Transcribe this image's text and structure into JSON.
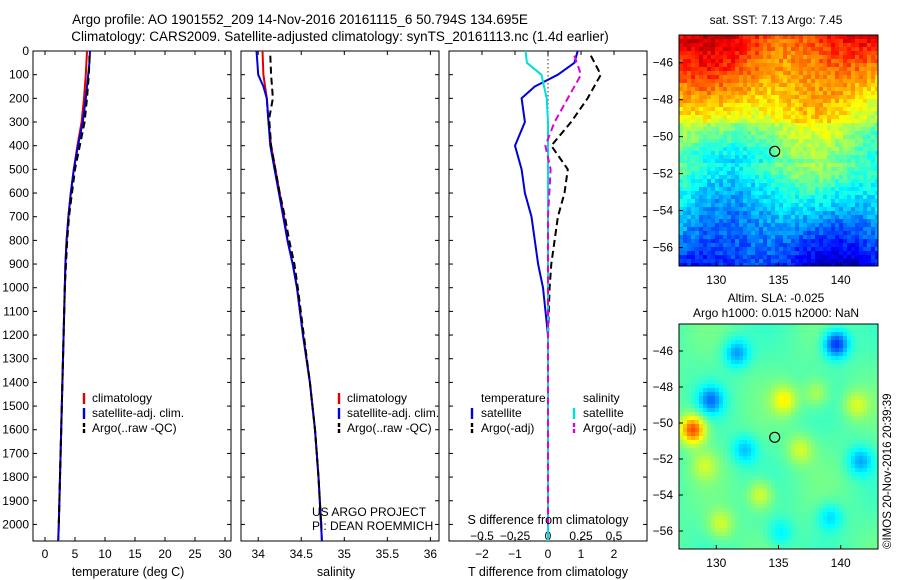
{
  "header": {
    "title_line1": "Argo profile: AO 1901552_209 14-Nov-2016 20161115_6 50.794S 134.695E",
    "title_line2": "Climatology: CARS2009. Satellite-adjusted climatology: synTS_20161113.nc (1.4d earlier)"
  },
  "credits": {
    "project": "US ARGO PROJECT",
    "pi": "PI: DEAN ROEMMICH",
    "copyright": "©IMOS 20-Nov-2016 20:39:39"
  },
  "colors": {
    "climatology": "#dd0000",
    "satellite": "#0000dd",
    "argo": "#000000",
    "satellite_salinity": "#00dddd",
    "argo_salinity": "#dd00dd"
  },
  "chart_data": [
    {
      "id": "temperature",
      "type": "line",
      "xlabel": "temperature (deg C)",
      "ylabel": "",
      "xlim": [
        -2,
        31
      ],
      "ylim": [
        2070,
        0
      ],
      "y_reversed": true,
      "xticks": [
        0,
        5,
        10,
        15,
        20,
        25,
        30
      ],
      "yticks": [
        0,
        100,
        200,
        300,
        400,
        500,
        600,
        700,
        800,
        900,
        1000,
        1100,
        1200,
        1300,
        1400,
        1500,
        1600,
        1700,
        1800,
        1900,
        2000
      ],
      "legend": [
        "climatology",
        "satellite-adj. clim.",
        "Argo(..raw -QC)"
      ],
      "legend_position": "lower-right",
      "series": [
        {
          "name": "climatology",
          "style": "solid",
          "color": "#dd0000",
          "points": [
            [
              7.0,
              0
            ],
            [
              6.9,
              50
            ],
            [
              6.8,
              100
            ],
            [
              6.5,
              200
            ],
            [
              6.1,
              300
            ],
            [
              5.4,
              400
            ],
            [
              4.8,
              500
            ],
            [
              4.3,
              600
            ],
            [
              3.9,
              700
            ],
            [
              3.6,
              800
            ],
            [
              3.4,
              900
            ],
            [
              3.3,
              1000
            ],
            [
              3.1,
              1200
            ],
            [
              2.9,
              1400
            ],
            [
              2.7,
              1600
            ],
            [
              2.5,
              1800
            ],
            [
              2.3,
              2000
            ],
            [
              2.2,
              2070
            ]
          ]
        },
        {
          "name": "satellite-adj. clim.",
          "style": "solid",
          "color": "#0000dd",
          "points": [
            [
              7.5,
              0
            ],
            [
              7.4,
              50
            ],
            [
              7.2,
              100
            ],
            [
              6.8,
              200
            ],
            [
              6.3,
              300
            ],
            [
              5.5,
              400
            ],
            [
              4.8,
              500
            ],
            [
              4.3,
              600
            ],
            [
              3.9,
              700
            ],
            [
              3.6,
              800
            ],
            [
              3.4,
              900
            ],
            [
              3.3,
              1000
            ],
            [
              3.1,
              1200
            ],
            [
              2.9,
              1400
            ],
            [
              2.7,
              1600
            ],
            [
              2.5,
              1800
            ],
            [
              2.3,
              2000
            ],
            [
              2.2,
              2070
            ]
          ]
        },
        {
          "name": "Argo(..raw -QC)",
          "style": "dashed",
          "color": "#000000",
          "points": [
            [
              7.4,
              20
            ],
            [
              7.4,
              50
            ],
            [
              7.3,
              100
            ],
            [
              7.0,
              200
            ],
            [
              6.6,
              300
            ],
            [
              5.8,
              400
            ],
            [
              5.0,
              500
            ],
            [
              4.5,
              600
            ],
            [
              4.0,
              700
            ],
            [
              3.7,
              800
            ],
            [
              3.5,
              900
            ],
            [
              3.3,
              1000
            ],
            [
              3.1,
              1200
            ],
            [
              2.9,
              1400
            ],
            [
              2.7,
              1600
            ],
            [
              2.5,
              1800
            ],
            [
              2.3,
              2000
            ]
          ]
        }
      ]
    },
    {
      "id": "salinity",
      "type": "line",
      "xlabel": "salinity",
      "ylabel": "",
      "xlim": [
        33.8,
        36.1
      ],
      "ylim": [
        2070,
        0
      ],
      "y_reversed": true,
      "xticks": [
        34,
        34.5,
        35,
        35.5,
        36
      ],
      "legend": [
        "climatology",
        "satellite-adj. clim.",
        "Argo(..raw -QC)"
      ],
      "legend_position": "lower-right",
      "series": [
        {
          "name": "climatology",
          "style": "solid",
          "color": "#dd0000",
          "points": [
            [
              34.05,
              0
            ],
            [
              34.06,
              100
            ],
            [
              34.1,
              200
            ],
            [
              34.12,
              300
            ],
            [
              34.15,
              400
            ],
            [
              34.2,
              500
            ],
            [
              34.25,
              600
            ],
            [
              34.3,
              700
            ],
            [
              34.34,
              800
            ],
            [
              34.4,
              900
            ],
            [
              34.45,
              1000
            ],
            [
              34.52,
              1200
            ],
            [
              34.6,
              1400
            ],
            [
              34.66,
              1600
            ],
            [
              34.7,
              1800
            ],
            [
              34.73,
              2000
            ],
            [
              34.74,
              2070
            ]
          ]
        },
        {
          "name": "satellite-adj. clim.",
          "style": "solid",
          "color": "#0000dd",
          "points": [
            [
              33.98,
              0
            ],
            [
              33.99,
              50
            ],
            [
              34.0,
              100
            ],
            [
              34.06,
              150
            ],
            [
              34.1,
              200
            ],
            [
              34.12,
              300
            ],
            [
              34.14,
              400
            ],
            [
              34.19,
              500
            ],
            [
              34.24,
              600
            ],
            [
              34.29,
              700
            ],
            [
              34.34,
              800
            ],
            [
              34.4,
              900
            ],
            [
              34.45,
              1000
            ],
            [
              34.52,
              1200
            ],
            [
              34.6,
              1400
            ],
            [
              34.66,
              1600
            ],
            [
              34.7,
              1800
            ],
            [
              34.73,
              2000
            ],
            [
              34.74,
              2070
            ]
          ]
        },
        {
          "name": "Argo(..raw -QC)",
          "style": "dashed",
          "color": "#000000",
          "points": [
            [
              34.14,
              20
            ],
            [
              34.15,
              100
            ],
            [
              34.17,
              200
            ],
            [
              34.13,
              280
            ],
            [
              34.13,
              300
            ],
            [
              34.15,
              400
            ],
            [
              34.2,
              500
            ],
            [
              34.25,
              600
            ],
            [
              34.31,
              700
            ],
            [
              34.36,
              800
            ],
            [
              34.42,
              900
            ],
            [
              34.46,
              1000
            ],
            [
              34.53,
              1200
            ],
            [
              34.6,
              1400
            ],
            [
              34.66,
              1600
            ],
            [
              34.7,
              1800
            ],
            [
              34.73,
              2000
            ]
          ]
        }
      ]
    },
    {
      "id": "differences",
      "type": "line",
      "xlabel": "T difference from climatology",
      "x2label": "S difference from climatology",
      "ylabel": "",
      "xlim": [
        -3,
        3
      ],
      "x2lim": [
        -0.75,
        0.75
      ],
      "ylim": [
        2070,
        0
      ],
      "y_reversed": true,
      "xticks": [
        -2,
        -1,
        0,
        1,
        2
      ],
      "x2ticks": [
        -0.5,
        -0.25,
        0,
        0.25,
        0.5
      ],
      "legend_groups": [
        {
          "title": "temperature",
          "entries": [
            "satellite",
            "Argo(-adj)"
          ]
        },
        {
          "title": "salinity",
          "entries": [
            "satellite",
            "Argo(-adj)"
          ]
        }
      ],
      "legend_position": "lower",
      "series": [
        {
          "name": "satellite",
          "group": "temperature",
          "style": "solid",
          "color": "#0000dd",
          "points": [
            [
              0.9,
              0
            ],
            [
              0.8,
              50
            ],
            [
              0.3,
              100
            ],
            [
              -0.4,
              150
            ],
            [
              -0.8,
              200
            ],
            [
              -0.7,
              300
            ],
            [
              -1.0,
              400
            ],
            [
              -0.8,
              500
            ],
            [
              -0.7,
              600
            ],
            [
              -0.5,
              700
            ],
            [
              -0.4,
              800
            ],
            [
              -0.3,
              900
            ],
            [
              -0.15,
              1000
            ],
            [
              0,
              1200
            ],
            [
              0,
              1500
            ],
            [
              0,
              2000
            ],
            [
              0,
              2070
            ]
          ]
        },
        {
          "name": "Argo(-adj)",
          "group": "temperature",
          "style": "dashed",
          "color": "#000000",
          "points": [
            [
              1.3,
              20
            ],
            [
              1.6,
              100
            ],
            [
              1.2,
              200
            ],
            [
              0.7,
              300
            ],
            [
              0.1,
              400
            ],
            [
              0.6,
              500
            ],
            [
              0.5,
              600
            ],
            [
              0.3,
              700
            ],
            [
              0.2,
              800
            ],
            [
              0.1,
              900
            ],
            [
              0.05,
              1000
            ],
            [
              0,
              1200
            ],
            [
              0,
              1500
            ],
            [
              0,
              2000
            ]
          ]
        },
        {
          "name": "satellite",
          "group": "salinity",
          "style": "solid",
          "color": "#00dddd",
          "points": [
            [
              -0.17,
              0
            ],
            [
              -0.16,
              50
            ],
            [
              -0.05,
              100
            ],
            [
              -0.01,
              200
            ],
            [
              0,
              300
            ],
            [
              0,
              500
            ],
            [
              0,
              700
            ],
            [
              0,
              1000
            ],
            [
              0,
              1500
            ],
            [
              0,
              2000
            ],
            [
              0,
              2070
            ]
          ]
        },
        {
          "name": "Argo(-adj)",
          "group": "salinity",
          "style": "dashed",
          "color": "#dd00dd",
          "points": [
            [
              0.2,
              20
            ],
            [
              0.25,
              100
            ],
            [
              0.15,
              200
            ],
            [
              0.05,
              300
            ],
            [
              -0.02,
              400
            ],
            [
              0.02,
              500
            ],
            [
              0.0,
              700
            ],
            [
              0,
              1000
            ],
            [
              0,
              1500
            ],
            [
              0,
              2000
            ]
          ]
        }
      ]
    },
    {
      "id": "sst-map",
      "type": "heatmap",
      "title": "sat. SST: 7.13  Argo: 7.45",
      "xlim": [
        127,
        143
      ],
      "ylim": [
        -57,
        -44.5
      ],
      "xticks": [
        130,
        135,
        140
      ],
      "yticks": [
        -46,
        -48,
        -50,
        -52,
        -54,
        -56
      ],
      "marker": {
        "lon": 134.695,
        "lat": -50.794
      },
      "colormap": "jet"
    },
    {
      "id": "sla-map",
      "type": "heatmap",
      "title_line1": "Altim. SLA: -0.025",
      "title_line2": "Argo h1000: 0.015 h2000: NaN",
      "xlim": [
        127,
        143
      ],
      "ylim": [
        -57,
        -44.5
      ],
      "xticks": [
        130,
        135,
        140
      ],
      "yticks": [
        -46,
        -48,
        -50,
        -52,
        -54,
        -56
      ],
      "marker": {
        "lon": 134.695,
        "lat": -50.794
      },
      "colormap": "jet"
    }
  ]
}
